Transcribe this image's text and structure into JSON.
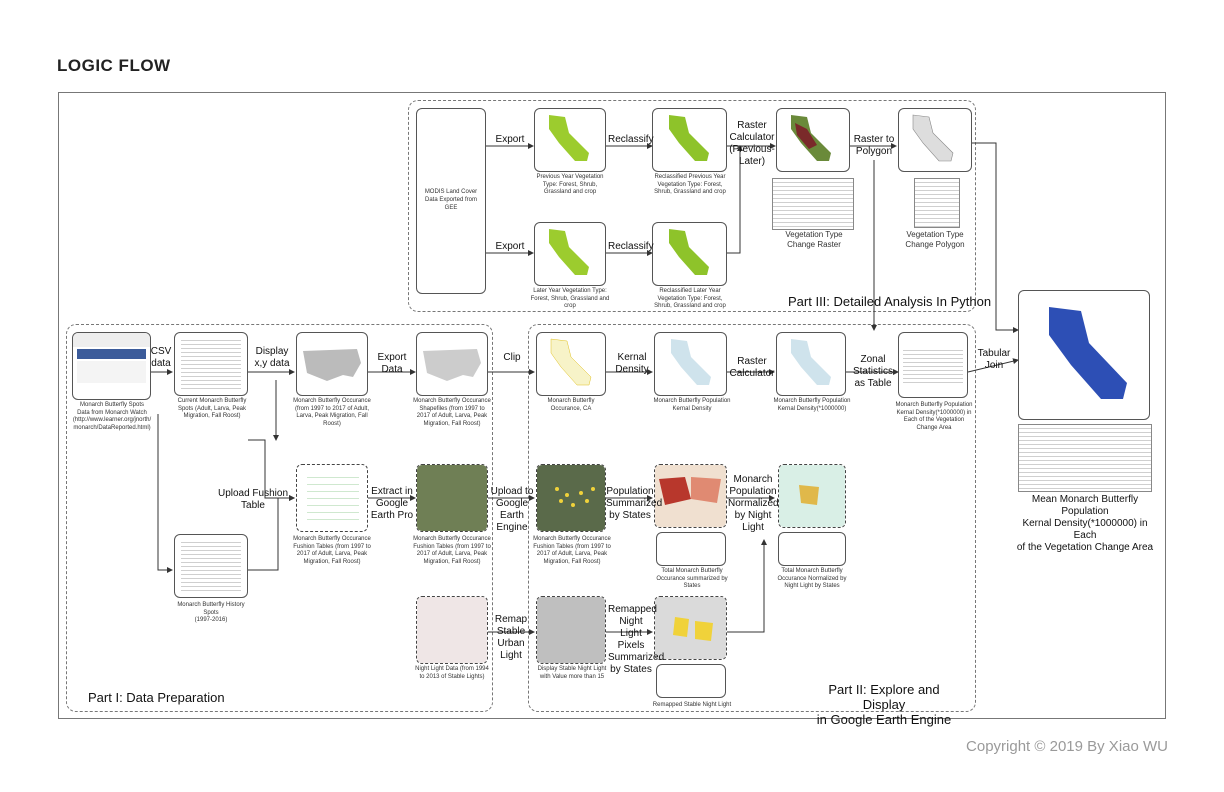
{
  "title": "LOGIC FLOW",
  "copyright": "Copyright © 2019 By Xiao WU",
  "parts": {
    "p1": "Part I: Data Preparation",
    "p2_line1": "Part II: Explore and Display",
    "p2_line2": "in Google Earth Engine",
    "p3": "Part III: Detailed Analysis In Python"
  },
  "captions": {
    "modis_1": "MODIS Land Cover",
    "modis_2": "Data Exported from GEE",
    "prev_year": "Previous Year Vegetation Type: Forest, Shrub, Grassland and crop",
    "reclass_prev": "Reclassified Previous Year Vegetation Type: Forest, Shrub, Grassland and crop",
    "later_year": "Later Year Vegetation Type: Forest, Shrub, Grassland and crop",
    "reclass_later": "Reclassified Later Year Vegetation Type: Forest, Shrub, Grassland and crop",
    "veg_raster": "Vegetation Type Change Raster",
    "veg_polygon": "Vegetation Type Change Polygon",
    "spots_1": "Monarch Butterfly Spots",
    "spots_2": "Data from Monarch Watch",
    "spots_3": "(http://www.learner.org/jnorth/",
    "spots_4": "monarch/DataReported.html)",
    "current_spots": "Current Monarch Butterfly Spots (Adult, Larva, Peak Migration, Fall Roost)",
    "occurance": "Monarch Butterfly Occurance (from 1997 to 2017 of Adult, Larva, Peak Migration, Fall Roost)",
    "shapefiles": "Monarch Butterfly Occurance Shapefiles (from 1997 to 2017 of Adult, Larva, Peak Migration, Fall Roost)",
    "occ_ca": "Monarch Butterfly Occurance, CA",
    "kernel_density": "Monarch Butterfly Population Kernal Density",
    "kernel_density_x": "Monarch Butterfly Population Kernal Density(*1000000)",
    "zonal_result": "Monarch Butterfly Population Kernal Density(*1000000) in Each of the Vegetation Change Area",
    "fushion_tables": "Monarch Butterfly Occurance Fushion Tables (from 1997 to 2017 of Adult, Larva, Peak Migration, Fall Roost)",
    "fushion_tables_gep": "Monarch Butterfly Occurance Fushion Tables (from 1997 to 2017 of Adult, Larva, Peak Migration, Fall Roost)",
    "fushion_tables_gee": "Monarch Butterfly Occurance Fushion Tables (from 1997 to 2017 of Adult, Larva, Peak Migration, Fall Roost)",
    "total_summarized": "Total Monarch Butterfly Occurance summarized by States",
    "total_normalized": "Total Monarch Butterfly Occurance Normalized by Night Light by States",
    "history_1": "Monarch Butterfly History Spots",
    "history_2": "(1997-2016)",
    "night_light": "Night Light Data (from 1994 to 2013 of Stable Lights)",
    "stable_night": "Display Stable Night Light with Value more than 15",
    "remapped_stable": "Remapped Stable Night Light",
    "final_1": "Mean Monarch Butterfly Population",
    "final_2": "Kernal Density(*1000000) in Each",
    "final_3": "of the Vegetation Change Area"
  },
  "labels": {
    "export": "Export",
    "reclassify": "Reclassify",
    "raster_calc": "Raster Calculator (Previous-Later)",
    "raster_to_polygon": "Raster to Polygon",
    "csv": "CSV data",
    "display_xy": "Display x,y data",
    "export_data": "Export Data",
    "clip": "Clip",
    "kernal_density": "Kernal Density",
    "raster_calculator": "Raster Calculator",
    "zonal": "Zonal Statistics as Table",
    "tabular_join": "Tabular Join",
    "upload_fushion": "Upload Fushion Table",
    "extract_gep": "Extract in Google Earth Pro",
    "upload_gee": "Upload to Google Earth Engine",
    "pop_summarized": "Population Summarized by States",
    "monarch_normalized": "Monarch Population Normalized by Night Light",
    "remap_stable": "Remap Stable Urban Light",
    "remapped_pixels": "Remapped Night Light Pixels Summarized by States"
  },
  "colors": {
    "vegetation": "#9ccc2e",
    "density": "#cfe3ec",
    "final_map": "#2d4fb5",
    "states_red": "#b8372c",
    "points_yellow": "#f0d23a"
  }
}
